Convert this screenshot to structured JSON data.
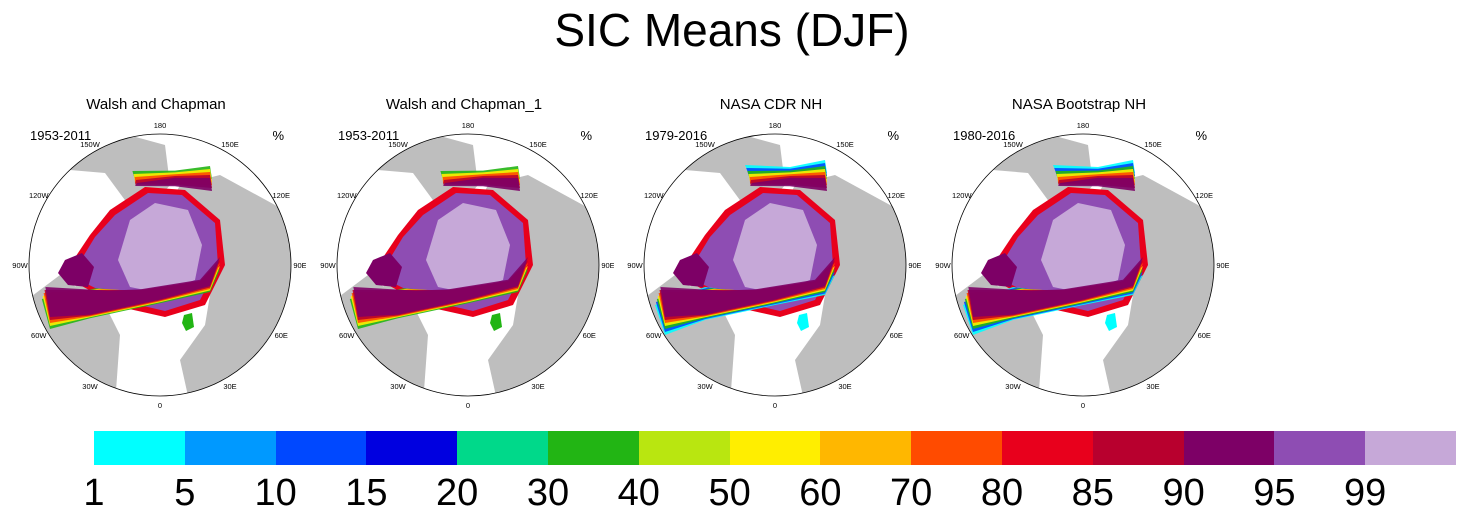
{
  "title": "SIC Means (DJF)",
  "units": "%",
  "panels": [
    {
      "title": "Walsh and Chapman",
      "years": "1953-2011"
    },
    {
      "title": "Walsh and Chapman_1",
      "years": "1953-2011"
    },
    {
      "title": "NASA CDR NH",
      "years": "1979-2016"
    },
    {
      "title": "NASA Bootstrap NH",
      "years": "1980-2016"
    }
  ],
  "longitude_labels": [
    "180",
    "150E",
    "120E",
    "90E",
    "60E",
    "30E",
    "0",
    "30W",
    "60W",
    "90W",
    "120W",
    "150W"
  ],
  "colorbar": {
    "colors": [
      "#00ffff",
      "#0099ff",
      "#0048ff",
      "#0000e0",
      "#00d98a",
      "#22b514",
      "#b9e610",
      "#ffee00",
      "#ffb700",
      "#ff4b00",
      "#e8001c",
      "#b8002e",
      "#7d0066",
      "#8e4db3",
      "#c6a8d8"
    ],
    "ticks": [
      "1",
      "5",
      "10",
      "15",
      "20",
      "30",
      "40",
      "50",
      "60",
      "70",
      "80",
      "85",
      "90",
      "95",
      "99"
    ]
  },
  "chart_data": {
    "type": "heatmap",
    "title": "SIC Means (DJF)",
    "variable": "Sea ice concentration",
    "units": "%",
    "projection": "north polar stereographic",
    "panels": [
      {
        "title": "Walsh and Chapman",
        "years": "1953-2011"
      },
      {
        "title": "Walsh and Chapman_1",
        "years": "1953-2011"
      },
      {
        "title": "NASA CDR NH",
        "years": "1979-2016"
      },
      {
        "title": "NASA Bootstrap NH",
        "years": "1980-2016"
      }
    ],
    "levels": [
      1,
      5,
      10,
      15,
      20,
      30,
      40,
      50,
      60,
      70,
      80,
      85,
      90,
      95,
      99
    ]
  }
}
